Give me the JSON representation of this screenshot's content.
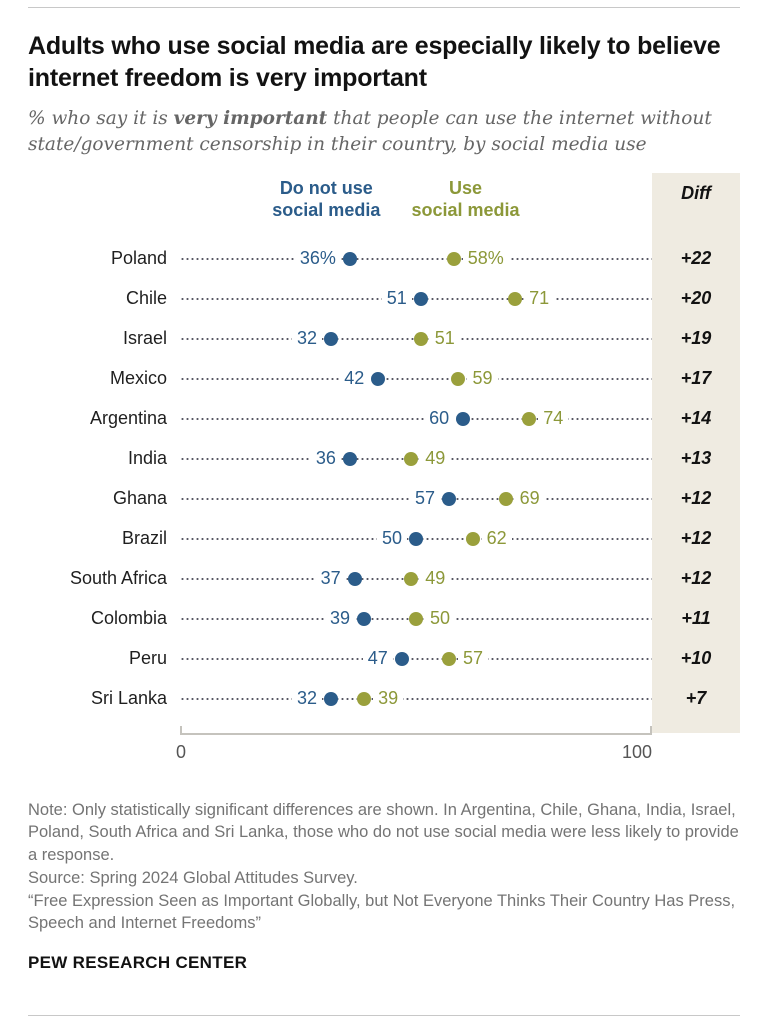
{
  "meta": {
    "brand": "PEW RESEARCH CENTER"
  },
  "header": {
    "title": "Adults who use social media are especially likely to believe internet freedom is very important",
    "subtitle_prefix": "% who say it is ",
    "subtitle_bold": "very important",
    "subtitle_suffix": " that people can use the internet without state/government censorship in their country, by social media use"
  },
  "legend": {
    "no_social_line1": "Do not use",
    "no_social_line2": "social media",
    "social_line1": "Use",
    "social_line2": "social media",
    "diff_label": "Diff"
  },
  "colors": {
    "no_social_dot": "#2b5c8a",
    "social_dot": "#9aa03c",
    "diff_column_bg": "#efebe1",
    "leader_dots": "#575763"
  },
  "chart_data": {
    "type": "scatter",
    "variant": "dumbbell-dot-plot",
    "xlim": [
      0,
      100
    ],
    "x_tick_labels": [
      "0",
      "100"
    ],
    "grid": false,
    "legend_position": "top",
    "series": [
      {
        "name": "Do not use social media",
        "color": "#2b5c8a"
      },
      {
        "name": "Use social media",
        "color": "#9aa03c"
      }
    ],
    "rows": [
      {
        "country": "Poland",
        "no_social": 36,
        "social": 58,
        "no_social_label": "36%",
        "social_label": "58%",
        "diff": "+22"
      },
      {
        "country": "Chile",
        "no_social": 51,
        "social": 71,
        "no_social_label": "51",
        "social_label": "71",
        "diff": "+20"
      },
      {
        "country": "Israel",
        "no_social": 32,
        "social": 51,
        "no_social_label": "32",
        "social_label": "51",
        "diff": "+19"
      },
      {
        "country": "Mexico",
        "no_social": 42,
        "social": 59,
        "no_social_label": "42",
        "social_label": "59",
        "diff": "+17"
      },
      {
        "country": "Argentina",
        "no_social": 60,
        "social": 74,
        "no_social_label": "60",
        "social_label": "74",
        "diff": "+14"
      },
      {
        "country": "India",
        "no_social": 36,
        "social": 49,
        "no_social_label": "36",
        "social_label": "49",
        "diff": "+13"
      },
      {
        "country": "Ghana",
        "no_social": 57,
        "social": 69,
        "no_social_label": "57",
        "social_label": "69",
        "diff": "+12"
      },
      {
        "country": "Brazil",
        "no_social": 50,
        "social": 62,
        "no_social_label": "50",
        "social_label": "62",
        "diff": "+12"
      },
      {
        "country": "South Africa",
        "no_social": 37,
        "social": 49,
        "no_social_label": "37",
        "social_label": "49",
        "diff": "+12"
      },
      {
        "country": "Colombia",
        "no_social": 39,
        "social": 50,
        "no_social_label": "39",
        "social_label": "50",
        "diff": "+11"
      },
      {
        "country": "Peru",
        "no_social": 47,
        "social": 57,
        "no_social_label": "47",
        "social_label": "57",
        "diff": "+10"
      },
      {
        "country": "Sri Lanka",
        "no_social": 32,
        "social": 39,
        "no_social_label": "32",
        "social_label": "39",
        "diff": "+7"
      }
    ]
  },
  "notes": {
    "note": "Note: Only statistically significant differences are shown. In Argentina, Chile, Ghana, India, Israel, Poland, South Africa and Sri Lanka, those who do not use social media were less likely to provide a response.",
    "source": "Source: Spring 2024 Global Attitudes Survey.",
    "report": "“Free Expression Seen as Important Globally, but Not Everyone Thinks Their Country Has Press, Speech and Internet Freedoms”"
  }
}
